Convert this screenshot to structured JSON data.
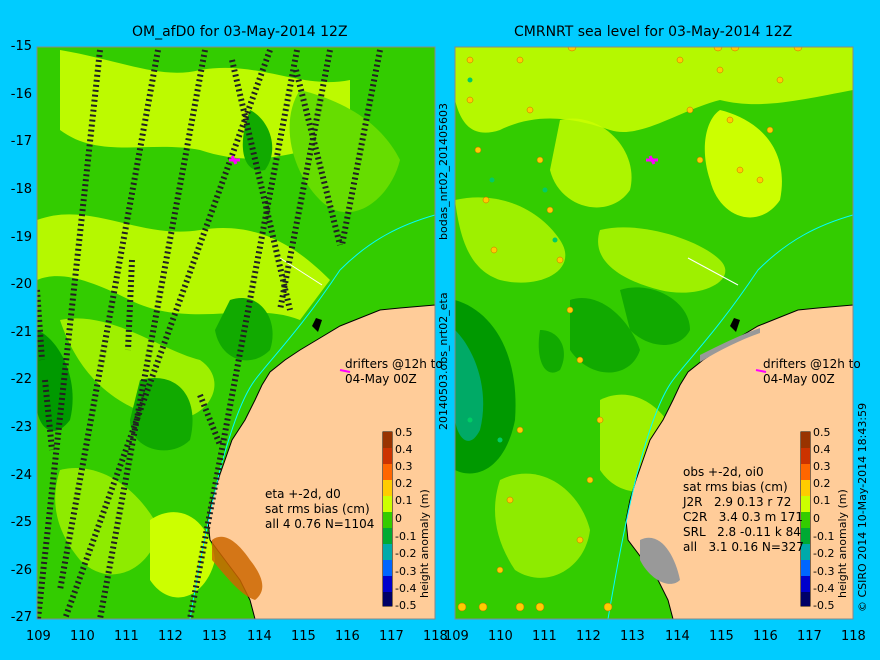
{
  "left_panel": {
    "title": "OM_afD0 for 03-May-2014 12Z",
    "drifter_label": "drifters @12h to\n04-May 00Z",
    "stats": "eta +-2d, d0\nsat rms bias (cm)\nall 4 0.76 N=1104"
  },
  "right_panel": {
    "title": "CMRNRT sea level  for 03-May-2014 12Z",
    "drifter_label": "drifters @12h to\n04-May 00Z",
    "stats_header": "obs +-2d, oi0\nsat rms bias (cm)",
    "stats_rows": [
      "J2R   2.9 0.13 r 72",
      "C2R   3.4 0.3 m 171",
      "SRL   2.8 -0.11 k 84",
      "all   3.1 0.16 N=327"
    ]
  },
  "y_ticks": [
    "-15",
    "-16",
    "-17",
    "-18",
    "-19",
    "-20",
    "-21",
    "-22",
    "-23",
    "-24",
    "-25",
    "-26",
    "-27"
  ],
  "x_ticks_left": [
    "109",
    "110",
    "111",
    "112",
    "113",
    "114",
    "115",
    "116",
    "117",
    "118"
  ],
  "x_ticks_right": [
    "109",
    "110",
    "111",
    "112",
    "113",
    "114",
    "115",
    "116",
    "117",
    "118"
  ],
  "colorbar": {
    "label": "height anomaly (m)",
    "ticks": [
      "0.5",
      "0.4",
      "0.3",
      "0.2",
      "0.1",
      "0",
      "-0.1",
      "-0.2",
      "-0.3",
      "-0.4",
      "-0.5"
    ]
  },
  "side_labels": {
    "bodas": "bodas_nrt02_201405603",
    "eta": "20140503.obs_nrt02_eta",
    "credit": "© CSIRO 2014  10-May-2014 18:43:59"
  },
  "colors": {
    "background": "#00ccff",
    "land": "#ffcc99",
    "ocean_green": "#33cc00",
    "anomaly_yellow": "#ccff00",
    "anomaly_dark_green": "#009900",
    "drifter": "#ff00ff",
    "current_line": "#00ffff"
  }
}
